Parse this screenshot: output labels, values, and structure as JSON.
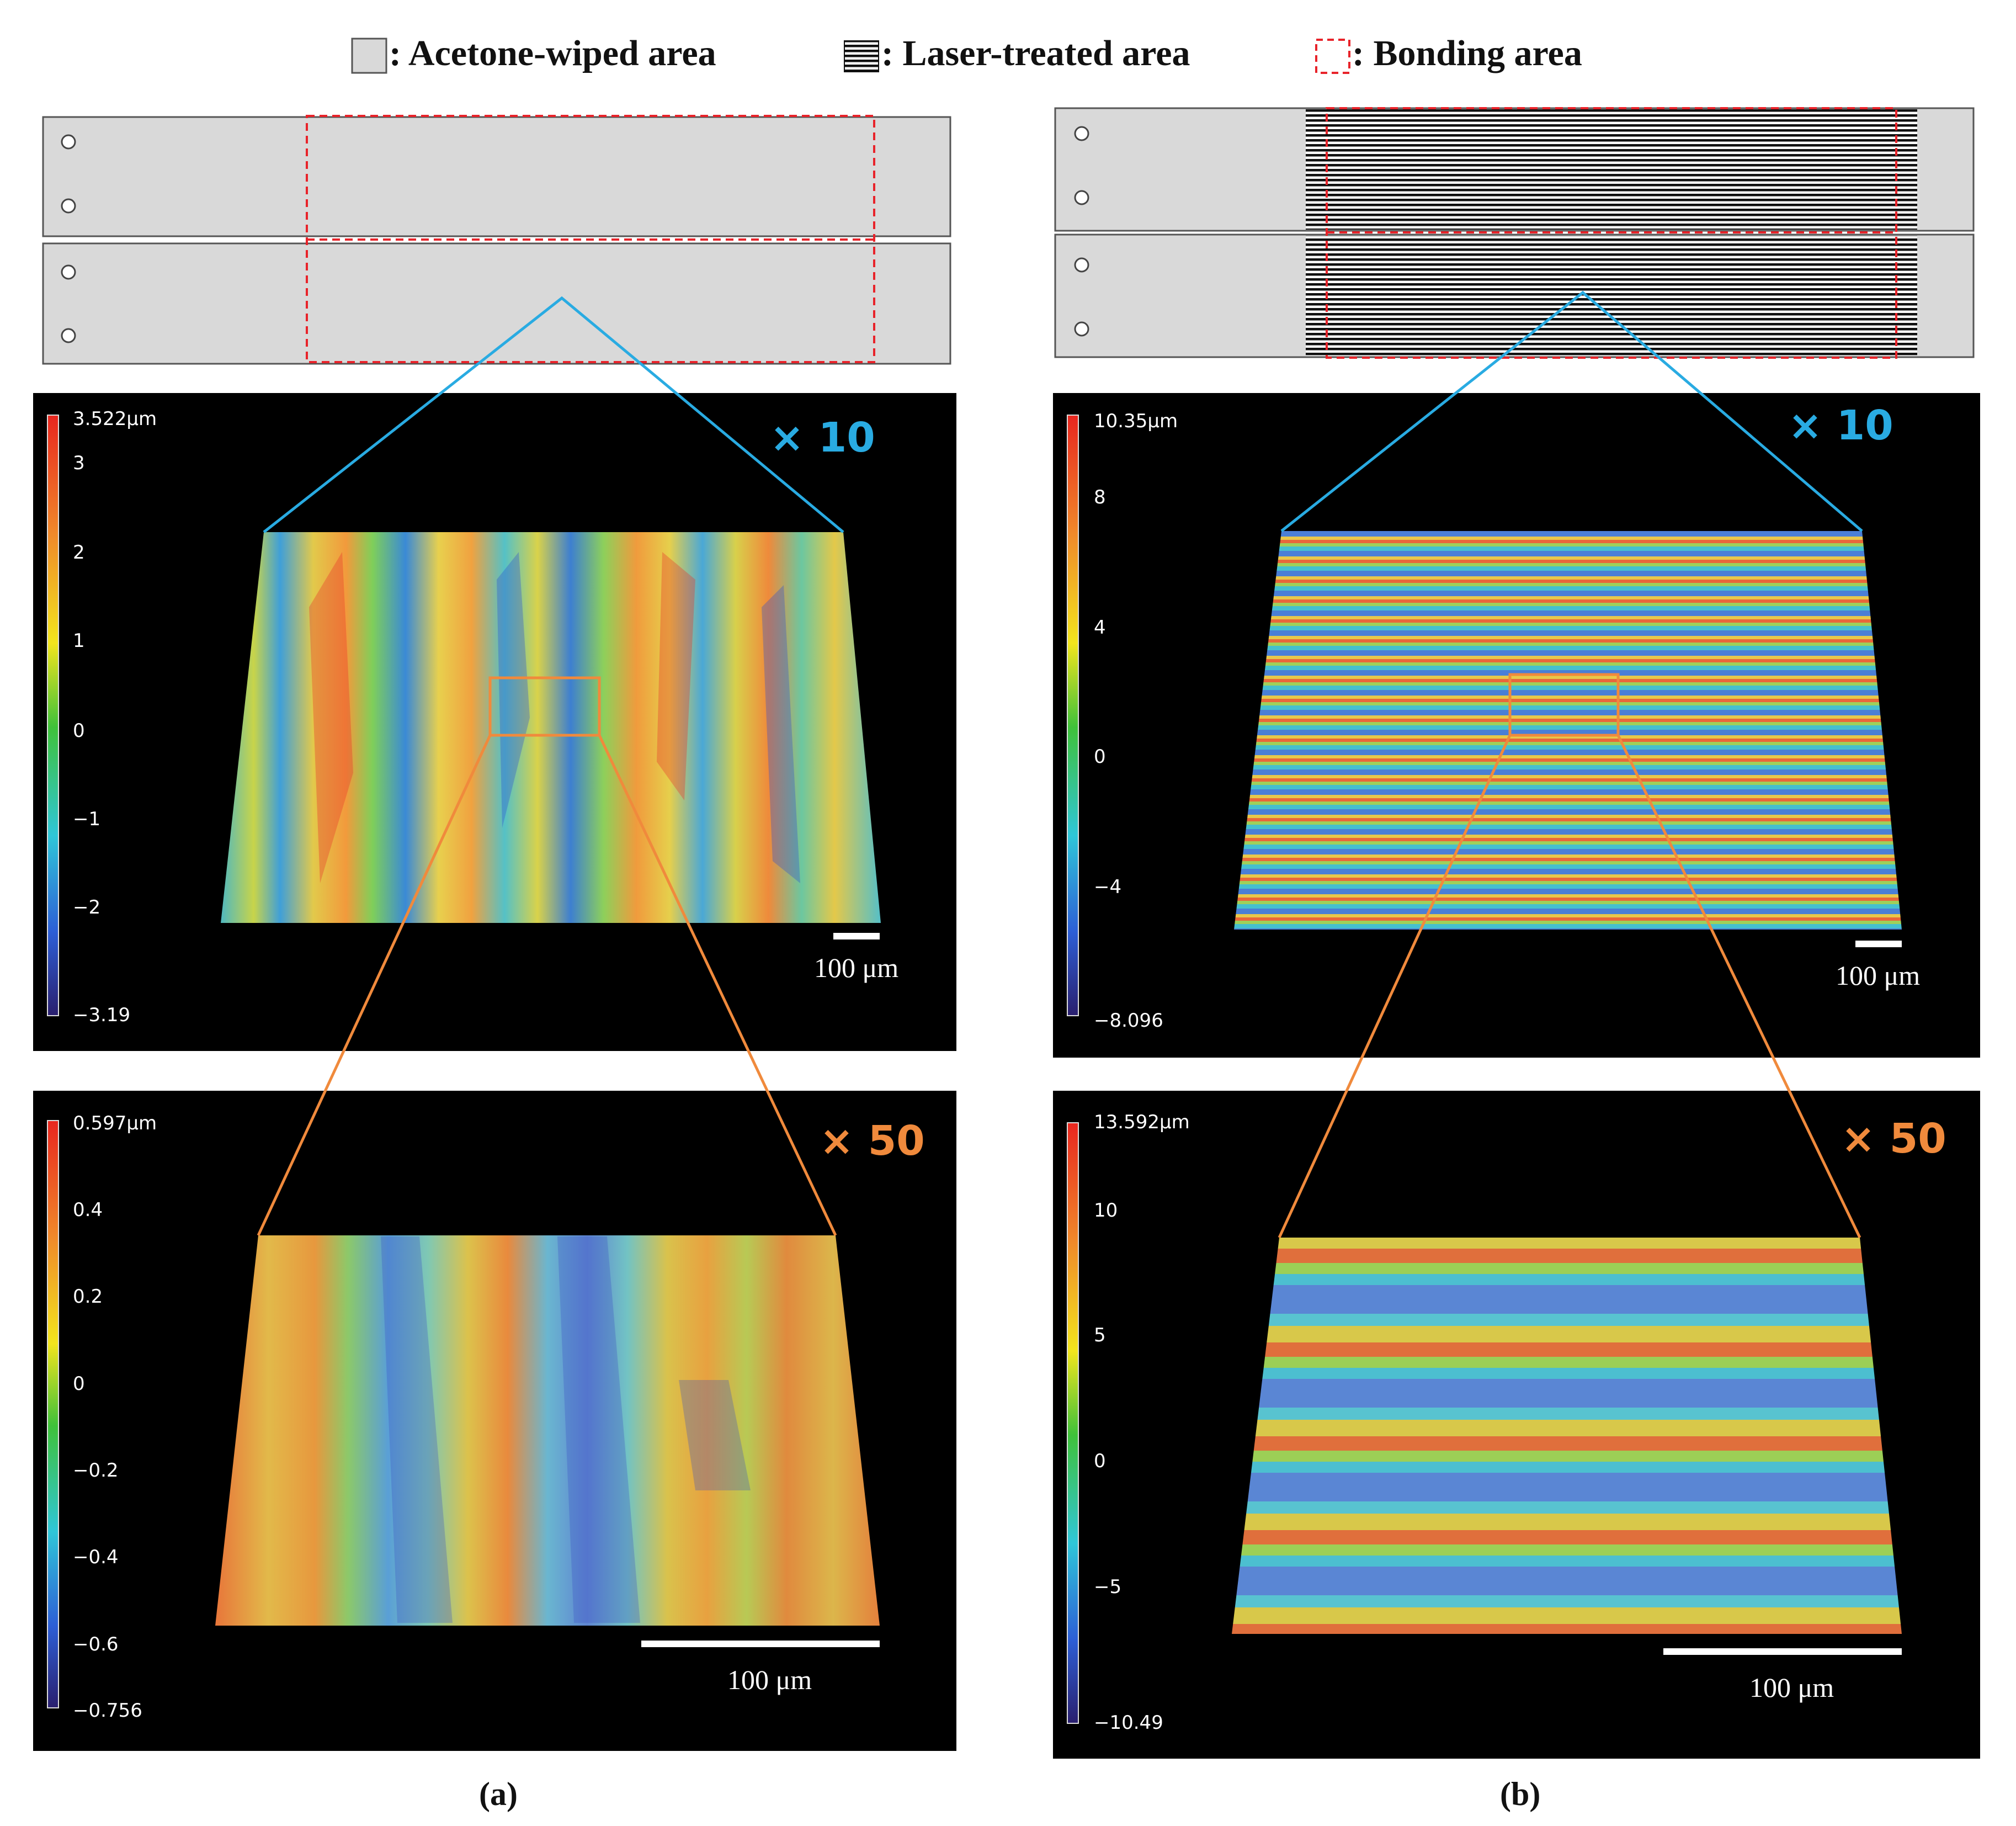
{
  "legend": {
    "acetone": ": Acetone-wiped area",
    "laser": ": Laser-treated area",
    "bonding": ": Bonding area"
  },
  "panel_a": {
    "caption_pre": "(",
    "caption_letter": "a",
    "caption_post": ")",
    "map10": {
      "magnification": "× 10",
      "colorbar": [
        "3.522μm",
        "3",
        "2",
        "1",
        "0",
        "−1",
        "−2",
        "−3.19"
      ],
      "scalebar": "100 μm"
    },
    "map50": {
      "magnification": "× 50",
      "colorbar": [
        "0.597μm",
        "0.4",
        "0.2",
        "0",
        "−0.2",
        "−0.4",
        "−0.6",
        "−0.756"
      ],
      "scalebar": "100 μm"
    }
  },
  "panel_b": {
    "caption_pre": "(",
    "caption_letter": "b",
    "caption_post": ")",
    "map10": {
      "magnification": "× 10",
      "colorbar": [
        "10.35μm",
        "8",
        "4",
        "0",
        "−4",
        "−8.096"
      ],
      "scalebar": "100 μm"
    },
    "map50": {
      "magnification": "× 50",
      "colorbar": [
        "13.592μm",
        "10",
        "5",
        "0",
        "−5",
        "−10.49"
      ],
      "scalebar": "100 μm"
    }
  },
  "colors": {
    "zoom10": "#29abe2",
    "zoom50": "#f08a3c",
    "bonding_outline": "#e8232a",
    "acetone_fill": "#d9d9d9"
  }
}
